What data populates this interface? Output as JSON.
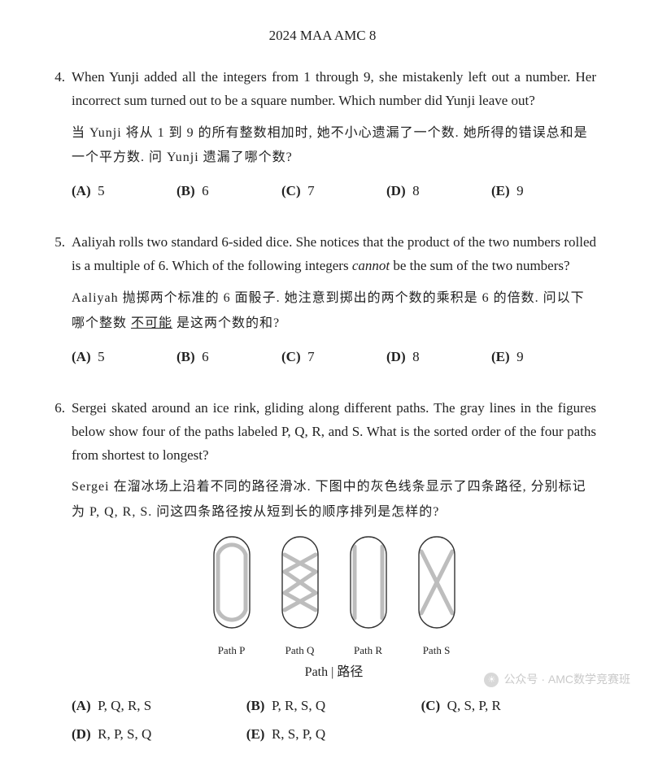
{
  "header": "2024 MAA AMC 8",
  "problems": [
    {
      "num": "4.",
      "en": "When Yunji added all the integers from 1 through 9, she mistakenly left out a number.  Her incorrect sum turned out to be a square number.  Which number did Yunji leave out?",
      "zh": "当 Yunji 将从 1 到 9 的所有整数相加时, 她不小心遗漏了一个数. 她所得的错误总和是一个平方数. 问 Yunji 遗漏了哪个数?",
      "choices": [
        {
          "l": "(A)",
          "v": "5"
        },
        {
          "l": "(B)",
          "v": "6"
        },
        {
          "l": "(C)",
          "v": "7"
        },
        {
          "l": "(D)",
          "v": "8"
        },
        {
          "l": "(E)",
          "v": "9"
        }
      ]
    },
    {
      "num": "5.",
      "en_parts": [
        "Aaliyah rolls two standard 6-sided dice.  She notices that the product of the two numbers rolled is a multiple of 6.  Which of the following integers ",
        "cannot",
        " be the sum of the two numbers?"
      ],
      "zh_parts": [
        "Aaliyah 抛掷两个标准的 6 面骰子. 她注意到掷出的两个数的乘积是 6 的倍数. 问以下哪个整数 ",
        "不可能",
        " 是这两个数的和?"
      ],
      "choices": [
        {
          "l": "(A)",
          "v": "5"
        },
        {
          "l": "(B)",
          "v": "6"
        },
        {
          "l": "(C)",
          "v": "7"
        },
        {
          "l": "(D)",
          "v": "8"
        },
        {
          "l": "(E)",
          "v": "9"
        }
      ]
    },
    {
      "num": "6.",
      "en": "Sergei skated around an ice rink, gliding along different paths.  The gray lines in the figures below show four of the paths labeled P, Q, R, and S. What is the sorted order of the four paths from shortest to longest?",
      "zh": "Sergei 在溜冰场上沿着不同的路径滑冰. 下图中的灰色线条显示了四条路径, 分别标记为 P, Q, R, S. 问这四条路径按从短到长的顺序排列是怎样的?",
      "figs": [
        {
          "cap": "Path P",
          "type": "P"
        },
        {
          "cap": "Path Q",
          "type": "Q"
        },
        {
          "cap": "Path R",
          "type": "R"
        },
        {
          "cap": "Path S",
          "type": "S"
        }
      ],
      "pathlabel": "Path  | 路径",
      "choices": [
        {
          "l": "(A)",
          "v": "P, Q, R, S"
        },
        {
          "l": "(B)",
          "v": "P, R, S, Q"
        },
        {
          "l": "(C)",
          "v": "Q, S, P, R"
        },
        {
          "l": "(D)",
          "v": "R, P, S, Q"
        },
        {
          "l": "(E)",
          "v": "R, S, P, Q"
        }
      ],
      "choice_wide": true
    }
  ],
  "svg": {
    "w": 50,
    "h": 118,
    "rink_stroke": "#333",
    "rink_sw": 1.4,
    "path_stroke": "#bdbdbd",
    "path_sw": 5,
    "rx": 22
  },
  "watermark": {
    "icon": "☀",
    "text": "公众号 · AMC数学竞赛班"
  }
}
